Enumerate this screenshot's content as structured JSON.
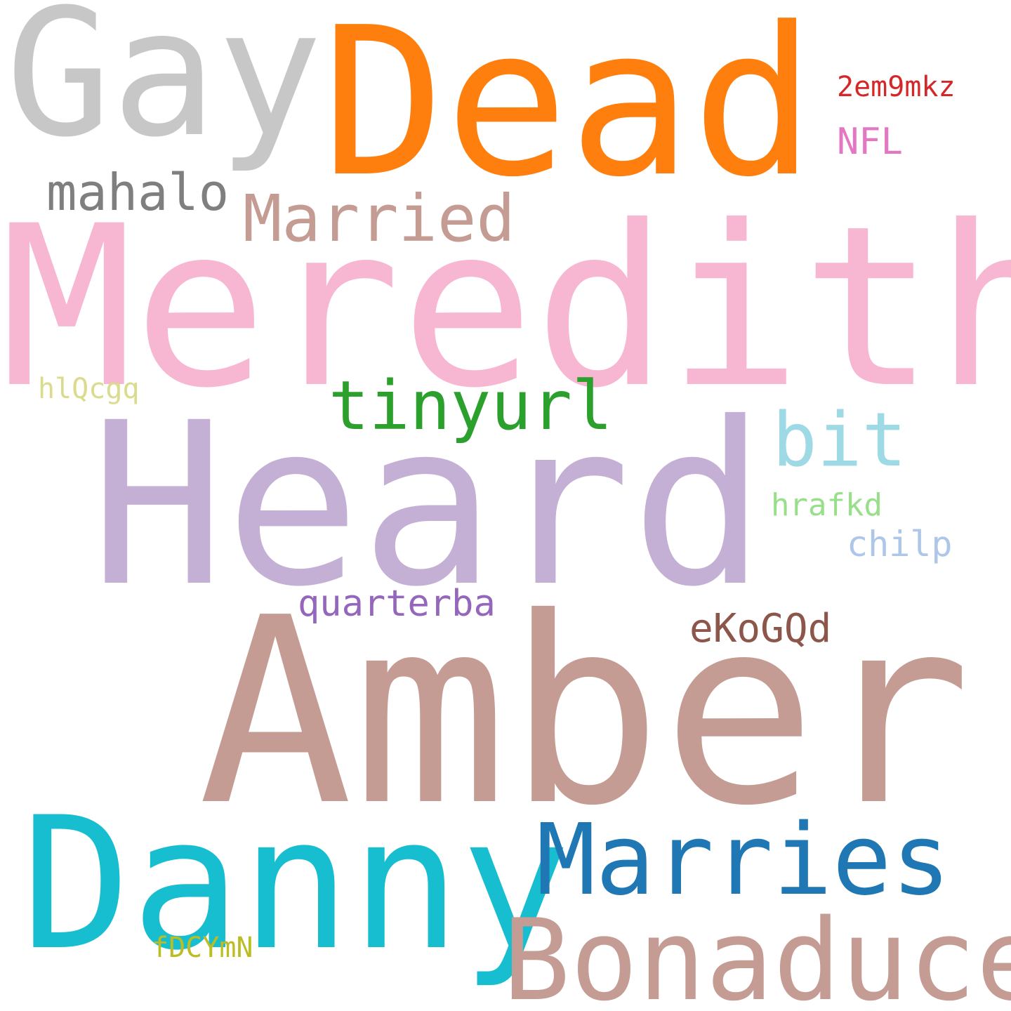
{
  "words": {
    "meredith": {
      "text": "Meredith",
      "color": "#f7b6d2"
    },
    "amber": {
      "text": "Amber",
      "color": "#c49c94"
    },
    "heard": {
      "text": "Heard",
      "color": "#c5b0d5"
    },
    "dead": {
      "text": "Dead",
      "color": "#ff7f0e"
    },
    "gay": {
      "text": "Gay",
      "color": "#c7c7c7"
    },
    "danny": {
      "text": "Danny",
      "color": "#17becf"
    },
    "bonaduce": {
      "text": "Bonaduce",
      "color": "#c49c94"
    },
    "marries": {
      "text": "Marries",
      "color": "#1f77b4"
    },
    "married": {
      "text": "Married",
      "color": "#c49c94"
    },
    "tinyurl": {
      "text": "tinyurl",
      "color": "#2ca02c"
    },
    "bit": {
      "text": "bit",
      "color": "#9edae5"
    },
    "mahalo": {
      "text": "mahalo",
      "color": "#7f7f7f"
    },
    "quarterba": {
      "text": "quarterba",
      "color": "#9467bd"
    },
    "ekogqd": {
      "text": "eKoGQd",
      "color": "#8c564b"
    },
    "chilp": {
      "text": "chilp",
      "color": "#aec7e8"
    },
    "hrafkd": {
      "text": "hrafkd",
      "color": "#98df8a"
    },
    "nfl": {
      "text": "NFL",
      "color": "#e377c2"
    },
    "2em9mkz": {
      "text": "2em9mkz",
      "color": "#d62728"
    },
    "hlqcgq": {
      "text": "hlQcgq",
      "color": "#dbdb8d"
    },
    "fdcymn": {
      "text": "fDCYmN",
      "color": "#bcbd22"
    }
  },
  "background": "#ffffff"
}
